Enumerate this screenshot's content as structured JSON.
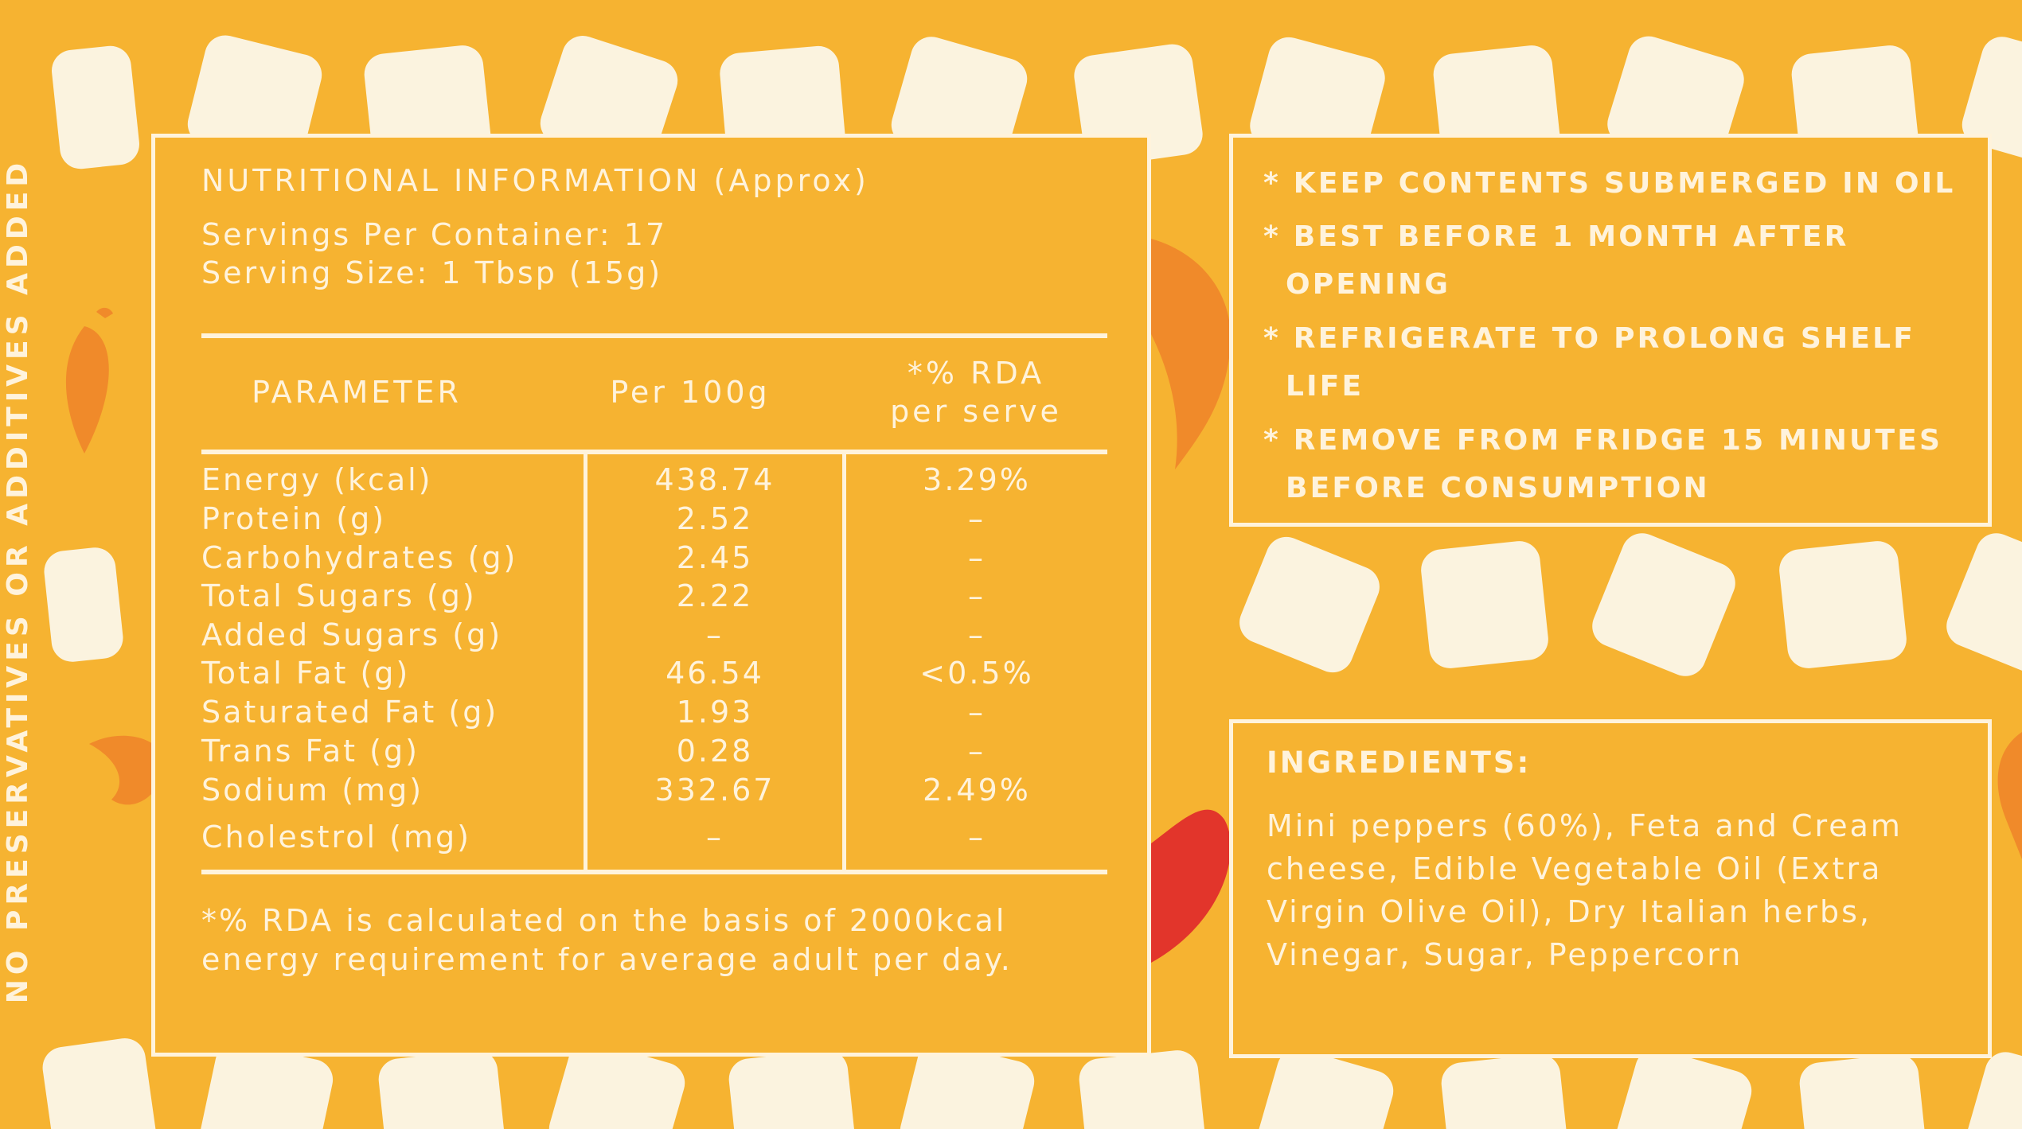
{
  "side_banner": "NO PRESERVATIVES OR ADDITIVES ADDED",
  "nutrition": {
    "title": "NUTRITIONAL INFORMATION (Approx)",
    "servings_per_container": "Servings Per Container: 17",
    "serving_size": "Serving Size: 1 Tbsp (15g)",
    "headers": {
      "parameter": "PARAMETER",
      "per100": "Per 100g",
      "rda_line1": "*% RDA",
      "rda_line2": "per serve"
    },
    "rows": [
      {
        "label": "Energy (kcal)",
        "per100": "438.74",
        "rda": "3.29%"
      },
      {
        "label": "Protein (g)",
        "per100": "2.52",
        "rda": "–"
      },
      {
        "label": "Carbohydrates (g)",
        "per100": "2.45",
        "rda": "–"
      },
      {
        "label": "Total Sugars (g)",
        "per100": "2.22",
        "rda": "–"
      },
      {
        "label": "Added Sugars (g)",
        "per100": "–",
        "rda": "–"
      },
      {
        "label": "Total Fat (g)",
        "per100": "46.54",
        "rda": "<0.5%"
      },
      {
        "label": "Saturated Fat (g)",
        "per100": "1.93",
        "rda": "–"
      },
      {
        "label": "Trans Fat (g)",
        "per100": "0.28",
        "rda": "–"
      },
      {
        "label": "Sodium (mg)",
        "per100": "332.67",
        "rda": "2.49%"
      },
      {
        "label": "Cholestrol (mg)",
        "per100": "–",
        "rda": "–"
      }
    ],
    "footnote": "*% RDA is calculated on the basis of 2000kcal energy requirement for average adult per day."
  },
  "storage": {
    "items": [
      "* KEEP CONTENTS SUBMERGED IN OIL",
      "* BEST BEFORE 1 MONTH AFTER OPENING",
      "* REFRIGERATE TO PROLONG SHELF LIFE",
      "* REMOVE FROM FRIDGE 15 MINUTES BEFORE CONSUMPTION"
    ]
  },
  "ingredients": {
    "title": "INGREDIENTS:",
    "text": "Mini peppers (60%), Feta and Cream cheese, Edible Vegetable Oil (Extra Virgin Olive Oil), Dry Italian herbs, Vinegar, Sugar, Peppercorn"
  },
  "colors": {
    "background": "#F6B331",
    "cream": "#FFF3DC",
    "cube": "#FBF3DF",
    "pepper_orange": "#F08A2A",
    "pepper_red": "#E2352B"
  }
}
